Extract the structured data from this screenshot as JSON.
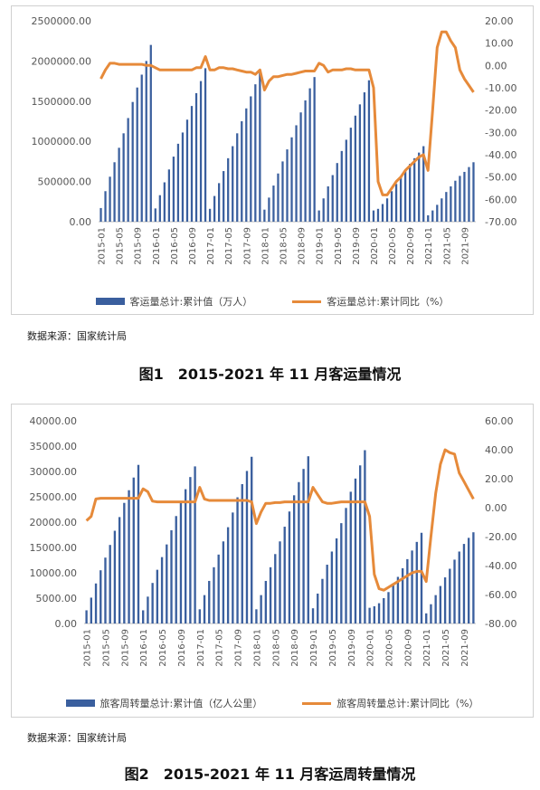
{
  "chart_data": [
    {
      "type": "bar+line",
      "title": "",
      "left_axis": {
        "min": 0,
        "max": 2500000,
        "step": 500000,
        "decimals": 2
      },
      "right_axis": {
        "min": -70,
        "max": 20,
        "step": 10,
        "decimals": 2
      },
      "x_tick_labels": [
        "2015-01",
        "2015-05",
        "2015-09",
        "2016-01",
        "2016-05",
        "2016-09",
        "2017-01",
        "2017-05",
        "2017-09",
        "2018-01",
        "2018-05",
        "2018-09",
        "2019-01",
        "2019-05",
        "2019-09",
        "2020-01",
        "2020-05",
        "2020-09",
        "2021-01",
        "2021-05",
        "2021-09"
      ],
      "series": [
        {
          "name": "客运量总计:累计值（万人）",
          "kind": "bar",
          "axis": "left",
          "values": [
            170000,
            380000,
            560000,
            740000,
            920000,
            1100000,
            1290000,
            1490000,
            1670000,
            1830000,
            2000000,
            2200000,
            165000,
            330000,
            490000,
            650000,
            810000,
            970000,
            1110000,
            1270000,
            1440000,
            1600000,
            1750000,
            1910000,
            160000,
            320000,
            480000,
            630000,
            790000,
            940000,
            1100000,
            1250000,
            1410000,
            1560000,
            1710000,
            1860000,
            150000,
            300000,
            450000,
            600000,
            750000,
            900000,
            1050000,
            1200000,
            1360000,
            1510000,
            1660000,
            1800000,
            140000,
            290000,
            440000,
            580000,
            730000,
            880000,
            1020000,
            1170000,
            1320000,
            1460000,
            1610000,
            1760000,
            140000,
            160000,
            220000,
            290000,
            380000,
            470000,
            560000,
            640000,
            720000,
            790000,
            860000,
            940000,
            80000,
            140000,
            210000,
            290000,
            370000,
            440000,
            510000,
            570000,
            620000,
            680000,
            740000
          ]
        },
        {
          "name": "客运量总计:累计同比（%）",
          "kind": "line",
          "axis": "right",
          "values": [
            -6,
            -2,
            1,
            1,
            0.5,
            0.5,
            0.5,
            0.5,
            0.5,
            0.5,
            0,
            0,
            -1,
            -2,
            -2,
            -2,
            -2,
            -2,
            -2,
            -2,
            -2,
            -1,
            -1,
            4,
            -2,
            -2,
            -1,
            -1,
            -1.5,
            -1.5,
            -2,
            -2.5,
            -3,
            -3,
            -4,
            -2,
            -11,
            -7,
            -5,
            -5,
            -4.5,
            -4,
            -4,
            -3.5,
            -3,
            -2.5,
            -2.5,
            -2.5,
            1,
            0,
            -3,
            -2,
            -2,
            -2,
            -1.5,
            -1.5,
            -2,
            -2,
            -2,
            -2,
            -10,
            -52,
            -58,
            -58,
            -55,
            -52,
            -50,
            -47,
            -45,
            -43,
            -41,
            -40,
            -47,
            -20,
            8,
            15,
            15,
            11,
            8,
            -2,
            -6,
            -9,
            -12
          ]
        }
      ]
    },
    {
      "type": "bar+line",
      "title": "",
      "left_axis": {
        "min": 0,
        "max": 40000,
        "step": 5000,
        "decimals": 2
      },
      "right_axis": {
        "min": -80,
        "max": 60,
        "step": 20,
        "decimals": 2
      },
      "x_tick_labels": [
        "2015-01",
        "2015-05",
        "2015-09",
        "2016-01",
        "2016-05",
        "2016-09",
        "2017-01",
        "2017-05",
        "2017-09",
        "2018-01",
        "2018-05",
        "2018-09",
        "2019-01",
        "2019-05",
        "2019-09",
        "2020-01",
        "2020-05",
        "2020-09",
        "2021-01",
        "2021-05",
        "2021-09"
      ],
      "series": [
        {
          "name": "旅客周转量总计:累计值（亿人公里）",
          "kind": "bar",
          "axis": "left",
          "values": [
            2600,
            5100,
            7900,
            10500,
            13000,
            15500,
            18300,
            21000,
            23800,
            26300,
            28800,
            31300,
            2600,
            5300,
            8000,
            10600,
            13100,
            15600,
            18400,
            21200,
            24000,
            26500,
            28900,
            31000,
            2800,
            5600,
            8400,
            11100,
            13600,
            16200,
            19000,
            21900,
            24900,
            27500,
            30100,
            32900,
            2800,
            5600,
            8400,
            11100,
            13700,
            16200,
            19100,
            22100,
            25300,
            27900,
            30500,
            33000,
            3000,
            5900,
            8800,
            11600,
            14200,
            16800,
            19800,
            22800,
            26000,
            28600,
            31200,
            34200,
            3100,
            3400,
            4000,
            5000,
            6200,
            7600,
            9200,
            10900,
            12700,
            14400,
            16100,
            17900,
            2000,
            3800,
            5600,
            7400,
            9100,
            10800,
            12600,
            14200,
            15700,
            16900,
            18000
          ]
        },
        {
          "name": "旅客周转量总计:累计同比（%）",
          "kind": "line",
          "axis": "right",
          "values": [
            -9,
            -6,
            6,
            6.5,
            6.5,
            6.5,
            6.5,
            6.5,
            6.5,
            6.5,
            6.5,
            6.5,
            13,
            11,
            4.5,
            4,
            4,
            4,
            4,
            4,
            4,
            4,
            4,
            4,
            14,
            6,
            5,
            5,
            5,
            5,
            5,
            5,
            5,
            5,
            5,
            4,
            -11,
            -3,
            3,
            3,
            3.5,
            3.5,
            4,
            4,
            4,
            4,
            4,
            4,
            14,
            9,
            4,
            3,
            3,
            3.5,
            4,
            4,
            4,
            4,
            4,
            4,
            -6,
            -46,
            -56,
            -57,
            -55,
            -53,
            -51,
            -49,
            -47,
            -45,
            -44,
            -44,
            -51,
            -20,
            10,
            30,
            40,
            38,
            37,
            24,
            18,
            12,
            6
          ]
        }
      ]
    }
  ],
  "legend1": {
    "bar": "客运量总计:累计值（万人）",
    "line": "客运量总计:累计同比（%）"
  },
  "legend2": {
    "bar": "旅客周转量总计:累计值（亿人公里）",
    "line": "旅客周转量总计:累计同比（%）"
  },
  "source1": "数据来源：国家统计局",
  "source2": "数据来源：国家统计局",
  "caption1": "图1　2015-2021 年 11 月客运量情况",
  "caption2": "图2　2015-2021 年 11 月客运周转量情况",
  "colors": {
    "bar": "#3a5f9e",
    "line": "#e68a3a",
    "axis_text": "#555555"
  }
}
